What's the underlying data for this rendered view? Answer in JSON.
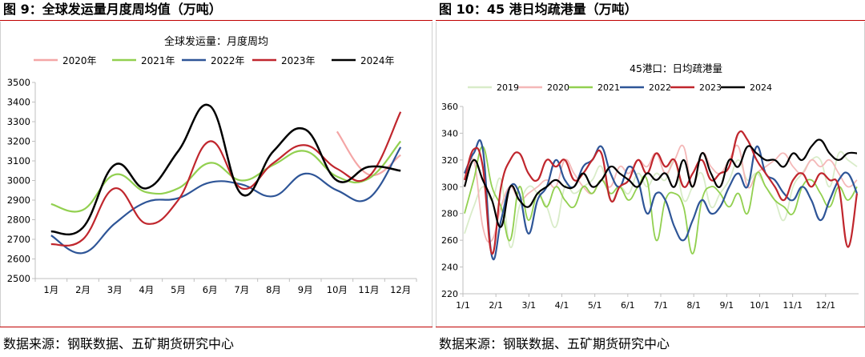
{
  "figures": [
    {
      "fig_title": "图 9：全球发运量月度周均值（万吨）",
      "source": "数据来源：钢联数据、五矿期货研究中心"
    },
    {
      "fig_title": "图 10：45 港日均疏港量（万吨）",
      "source": "数据来源：钢联数据、五矿期货研究中心"
    }
  ],
  "chart_data": [
    {
      "type": "line",
      "title": "全球发运量：月度周均",
      "xlabel": "",
      "ylabel": "",
      "categories": [
        "1月",
        "2月",
        "3月",
        "4月",
        "5月",
        "6月",
        "7月",
        "8月",
        "9月",
        "10月",
        "11月",
        "12月"
      ],
      "ylim": [
        2500,
        3500
      ],
      "yticks": [
        2500,
        2600,
        2700,
        2800,
        2900,
        3000,
        3100,
        3200,
        3300,
        3400,
        3500
      ],
      "legend_position": "top",
      "grid": false,
      "series": [
        {
          "name": "2020年",
          "color": "#f4a6a6",
          "values": [
            null,
            null,
            null,
            null,
            null,
            null,
            null,
            null,
            null,
            3250,
            3030,
            3130
          ]
        },
        {
          "name": "2021年",
          "color": "#92d050",
          "values": [
            2880,
            2850,
            3030,
            2940,
            2960,
            3090,
            3000,
            3080,
            3150,
            3020,
            3010,
            3200
          ]
        },
        {
          "name": "2022年",
          "color": "#2e5597",
          "values": [
            2720,
            2630,
            2780,
            2890,
            2910,
            2990,
            2980,
            2920,
            3035,
            2950,
            2910,
            3170
          ]
        },
        {
          "name": "2023年",
          "color": "#c0262d",
          "values": [
            2675,
            2700,
            2960,
            2780,
            2900,
            3200,
            2960,
            3090,
            3180,
            3060,
            3020,
            3350
          ]
        },
        {
          "name": "2024年",
          "color": "#000000",
          "values": [
            2740,
            2760,
            3080,
            2960,
            3150,
            3380,
            2930,
            3150,
            3260,
            3000,
            3070,
            3050
          ]
        }
      ]
    },
    {
      "type": "line",
      "title": "45港口：日均疏港量",
      "xlabel": "",
      "ylabel": "",
      "x_ticks": [
        "1/1",
        "2/1",
        "3/1",
        "4/1",
        "5/1",
        "6/1",
        "7/1",
        "8/1",
        "9/1",
        "10/1",
        "11/1",
        "12/1"
      ],
      "ylim": [
        220,
        360
      ],
      "yticks": [
        220,
        240,
        260,
        280,
        300,
        320,
        340,
        360
      ],
      "legend_position": "top",
      "grid": false,
      "series": [
        {
          "name": "2019",
          "color": "#d9ecc9",
          "values": [
            265,
            285,
            300,
            290,
            305,
            255,
            285,
            300,
            295,
            285,
            270,
            300,
            295,
            300,
            305,
            315,
            290,
            300,
            295,
            310,
            300,
            310,
            305,
            320,
            290,
            300,
            310,
            285,
            295,
            305,
            320,
            305,
            310,
            300,
            290,
            275,
            300,
            310,
            320,
            320,
            300,
            325,
            320,
            315
          ]
        },
        {
          "name": "2020",
          "color": "#f4b8b8",
          "values": [
            300,
            320,
            270,
            260,
            285,
            300,
            290,
            295,
            300,
            305,
            300,
            320,
            310,
            300,
            295,
            305,
            300,
            315,
            310,
            320,
            315,
            325,
            310,
            320,
            330,
            300,
            325,
            315,
            310,
            320,
            330,
            300,
            310,
            315,
            320,
            325,
            315,
            310,
            320,
            315,
            320,
            310,
            300,
            305
          ]
        },
        {
          "name": "2021",
          "color": "#92d050",
          "values": [
            280,
            305,
            330,
            300,
            285,
            260,
            300,
            275,
            295,
            285,
            300,
            290,
            285,
            300,
            295,
            305,
            295,
            300,
            290,
            300,
            305,
            260,
            290,
            295,
            285,
            250,
            290,
            300,
            295,
            285,
            295,
            280,
            310,
            300,
            290,
            285,
            280,
            300,
            305,
            295,
            285,
            300,
            290,
            300
          ]
        },
        {
          "name": "2022",
          "color": "#2e5597",
          "values": [
            310,
            325,
            328,
            248,
            275,
            300,
            295,
            265,
            290,
            300,
            320,
            305,
            300,
            315,
            320,
            330,
            310,
            300,
            315,
            305,
            280,
            295,
            290,
            270,
            260,
            275,
            290,
            280,
            285,
            300,
            310,
            300,
            330,
            310,
            305,
            295,
            290,
            300,
            290,
            275,
            290,
            305,
            310,
            295
          ]
        },
        {
          "name": "2023",
          "color": "#c0262d",
          "values": [
            305,
            328,
            315,
            250,
            300,
            320,
            325,
            310,
            305,
            320,
            315,
            320,
            305,
            310,
            320,
            325,
            290,
            300,
            305,
            320,
            310,
            325,
            315,
            320,
            300,
            310,
            320,
            305,
            310,
            315,
            340,
            335,
            320,
            310,
            300,
            290,
            305,
            310,
            300,
            310,
            305,
            300,
            255,
            295
          ]
        },
        {
          "name": "2024",
          "color": "#000000",
          "values": [
            300,
            320,
            305,
            290,
            270,
            300,
            290,
            285,
            295,
            300,
            305,
            300,
            300,
            310,
            300,
            305,
            315,
            310,
            305,
            300,
            310,
            305,
            310,
            300,
            320,
            300,
            325,
            310,
            300,
            320,
            315,
            330,
            325,
            320,
            320,
            315,
            325,
            320,
            330,
            335,
            325,
            320,
            325,
            325
          ]
        }
      ]
    }
  ]
}
